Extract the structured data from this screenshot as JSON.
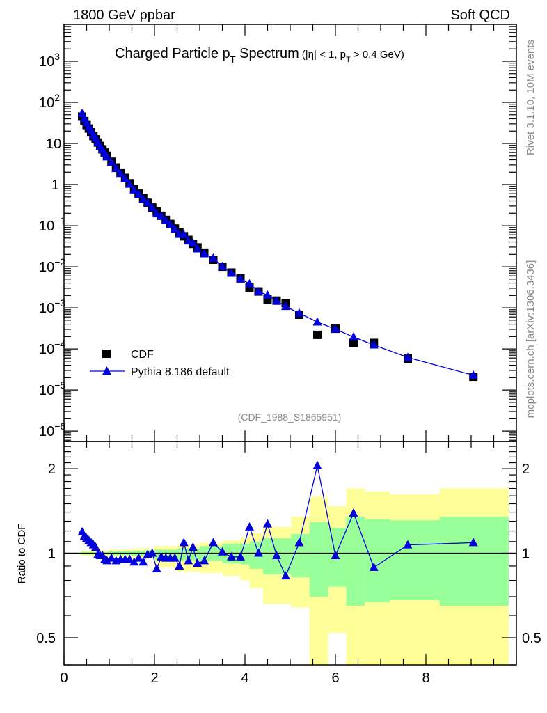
{
  "header": {
    "left": "1800 GeV ppbar",
    "right": "Soft QCD",
    "side_top": "Rivet 3.1.10,  10M events",
    "side_bottom": "mcplots.cern.ch [arXiv:1306.3436]"
  },
  "chart_data": [
    {
      "type": "scatter",
      "title": {
        "main": "Charged Particle p",
        "sub": "T",
        "rest": " Spectrum",
        "cuts_a": "(|η| < 1, p",
        "cuts_sub": "T",
        "cuts_b": " > 0.4 GeV)"
      },
      "analysis_label": "(CDF_1988_S1865951)",
      "xlabel": "",
      "ylabel": "",
      "xlim": [
        0,
        10
      ],
      "ylim": [
        5.6e-07,
        7900
      ],
      "yscale": "log",
      "legend": {
        "position": "bottom-left",
        "entries": [
          "CDF",
          "Pythia 8.186 default"
        ]
      },
      "yticks": [
        {
          "value": 1000,
          "base": "10",
          "exp": "3"
        },
        {
          "value": 100,
          "base": "10",
          "exp": "2"
        },
        {
          "value": 10,
          "base": "10",
          "exp": ""
        },
        {
          "value": 1,
          "base": "1",
          "exp": ""
        },
        {
          "value": 0.1,
          "base": "10",
          "exp": "−1"
        },
        {
          "value": 0.01,
          "base": "10",
          "exp": "−2"
        },
        {
          "value": 0.001,
          "base": "10",
          "exp": "−3"
        },
        {
          "value": 0.0001,
          "base": "10",
          "exp": "−4"
        },
        {
          "value": 1e-05,
          "base": "10",
          "exp": "−5"
        },
        {
          "value": 1e-06,
          "base": "10",
          "exp": "−6"
        }
      ],
      "x": [
        0.4,
        0.45,
        0.5,
        0.55,
        0.6,
        0.65,
        0.7,
        0.75,
        0.8,
        0.85,
        0.9,
        0.95,
        1.05,
        1.15,
        1.25,
        1.35,
        1.45,
        1.55,
        1.65,
        1.75,
        1.85,
        1.95,
        2.05,
        2.15,
        2.25,
        2.35,
        2.45,
        2.55,
        2.65,
        2.75,
        2.85,
        2.95,
        3.1,
        3.3,
        3.5,
        3.7,
        3.9,
        4.1,
        4.3,
        4.5,
        4.7,
        4.9,
        5.2,
        5.6,
        6.0,
        6.4,
        6.85,
        7.6,
        9.05
      ],
      "series": [
        {
          "name": "CDF",
          "color": "#000000",
          "marker": "square",
          "values": [
            45,
            35,
            28,
            23,
            18.6,
            15.1,
            12.6,
            10.5,
            8.7,
            7.2,
            6.0,
            5.0,
            3.6,
            2.6,
            1.95,
            1.45,
            1.07,
            0.79,
            0.6,
            0.47,
            0.36,
            0.275,
            0.22,
            0.174,
            0.138,
            0.11,
            0.085,
            0.068,
            0.055,
            0.045,
            0.036,
            0.0295,
            0.022,
            0.0148,
            0.01,
            0.0072,
            0.0052,
            0.0031,
            0.0025,
            0.0016,
            0.0015,
            0.0013,
            0.00068,
            0.00022,
            0.00031,
            0.00014,
            0.00014,
            5.8e-05,
            2.1e-05
          ]
        },
        {
          "name": "Pythia 8.186 default",
          "color": "#0000dd",
          "marker": "triangle",
          "ratio_to_cdf": [
            1.19,
            1.15,
            1.13,
            1.11,
            1.09,
            1.07,
            1.05,
            0.99,
            0.98,
            0.98,
            0.95,
            0.94,
            0.96,
            0.94,
            0.95,
            0.95,
            0.95,
            0.93,
            0.96,
            0.93,
            0.99,
            1.0,
            0.88,
            0.97,
            0.96,
            0.96,
            0.96,
            0.9,
            1.09,
            0.94,
            1.05,
            0.92,
            0.94,
            1.09,
            1.01,
            0.97,
            0.97,
            1.24,
            1.0,
            1.27,
            0.98,
            0.83,
            1.09,
            2.05,
            0.98,
            1.39,
            0.89,
            1.07,
            1.09
          ]
        }
      ]
    },
    {
      "type": "scatter",
      "ylabel": "Ratio to CDF",
      "xlim": [
        0,
        10
      ],
      "ylim": [
        0.4,
        2.5
      ],
      "yscale": "log",
      "xticks": [
        "0",
        "2",
        "4",
        "6",
        "8"
      ],
      "yticks": [
        {
          "value": 0.5,
          "label": "0.5"
        },
        {
          "value": 1,
          "label": "1"
        },
        {
          "value": 2,
          "label": "2"
        }
      ],
      "band_colors": {
        "yellow": "#ffff99",
        "green": "#99ff99"
      },
      "bands": [
        {
          "x": [
            0.375,
            1.0
          ],
          "yellow": [
            0.98,
            1.02
          ],
          "green": [
            0.99,
            1.01
          ]
        },
        {
          "x": [
            1.0,
            1.5
          ],
          "yellow": [
            0.97,
            1.03
          ],
          "green": [
            0.985,
            1.015
          ]
        },
        {
          "x": [
            1.5,
            2.0
          ],
          "yellow": [
            0.96,
            1.04
          ],
          "green": [
            0.98,
            1.02
          ]
        },
        {
          "x": [
            2.0,
            2.5
          ],
          "yellow": [
            0.89,
            1.06
          ],
          "green": [
            0.95,
            1.03
          ]
        },
        {
          "x": [
            2.5,
            3.0
          ],
          "yellow": [
            0.86,
            1.07
          ],
          "green": [
            0.94,
            1.04
          ]
        },
        {
          "x": [
            3.0,
            3.5
          ],
          "yellow": [
            0.85,
            1.09
          ],
          "green": [
            0.94,
            1.06
          ]
        },
        {
          "x": [
            3.5,
            3.9
          ],
          "yellow": [
            0.83,
            1.11
          ],
          "green": [
            0.92,
            1.08
          ]
        },
        {
          "x": [
            3.9,
            4.1
          ],
          "yellow": [
            0.8,
            1.14
          ],
          "green": [
            0.91,
            1.08
          ]
        },
        {
          "x": [
            4.1,
            4.4
          ],
          "yellow": [
            0.75,
            1.18
          ],
          "green": [
            0.88,
            1.1
          ]
        },
        {
          "x": [
            4.4,
            5.02
          ],
          "yellow": [
            0.66,
            1.24
          ],
          "green": [
            0.84,
            1.13
          ]
        },
        {
          "x": [
            5.02,
            5.43
          ],
          "yellow": [
            0.64,
            1.35
          ],
          "green": [
            0.82,
            1.17
          ]
        },
        {
          "x": [
            5.43,
            5.84
          ],
          "yellow": [
            0.4,
            1.59
          ],
          "green": [
            0.7,
            1.29
          ]
        },
        {
          "x": [
            5.84,
            6.24
          ],
          "yellow": [
            0.52,
            1.47
          ],
          "green": [
            0.76,
            1.23
          ]
        },
        {
          "x": [
            6.24,
            6.65
          ],
          "yellow": [
            0.4,
            1.7
          ],
          "green": [
            0.65,
            1.35
          ]
        },
        {
          "x": [
            6.65,
            7.2
          ],
          "yellow": [
            0.4,
            1.66
          ],
          "green": [
            0.67,
            1.32
          ]
        },
        {
          "x": [
            7.2,
            8.3
          ],
          "yellow": [
            0.4,
            1.62
          ],
          "green": [
            0.68,
            1.31
          ]
        },
        {
          "x": [
            8.3,
            9.83
          ],
          "yellow": [
            0.4,
            1.7
          ],
          "green": [
            0.65,
            1.35
          ]
        }
      ]
    }
  ]
}
